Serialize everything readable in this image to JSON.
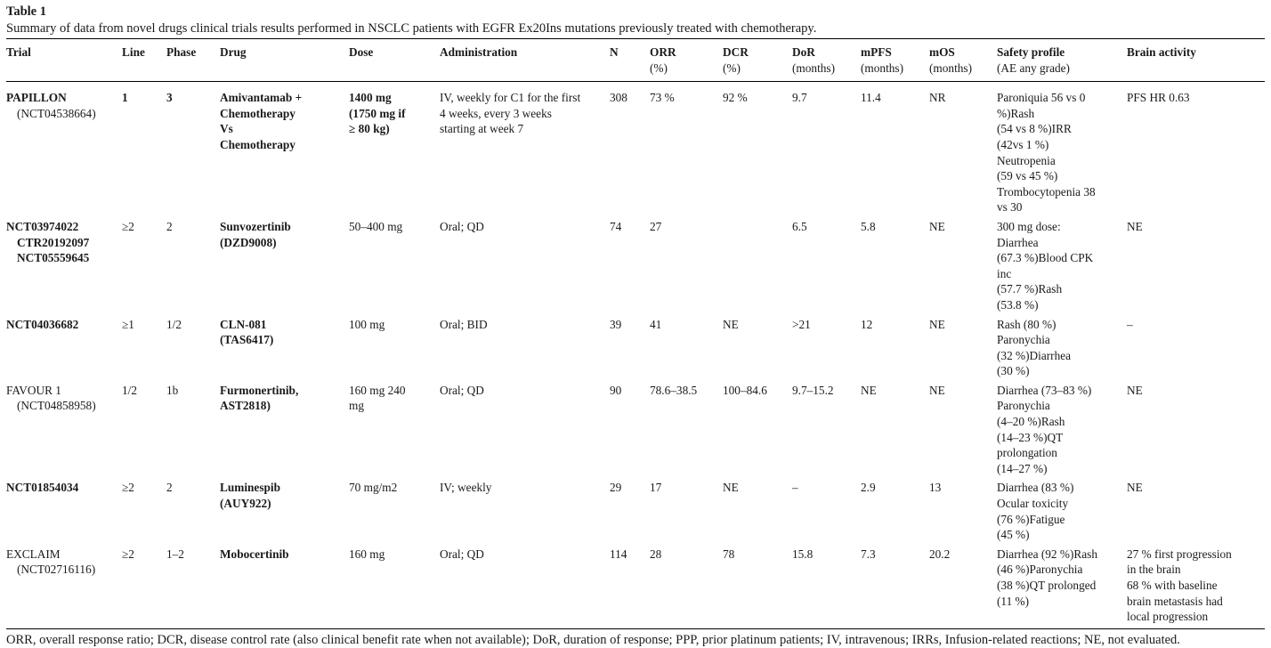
{
  "table": {
    "label": "Table 1",
    "caption": "Summary of data from novel drugs clinical trials results performed in NSCLC patients with EGFR Ex20Ins mutations previously treated with chemotherapy.",
    "headers": [
      {
        "main": "Trial",
        "unit": ""
      },
      {
        "main": "Line",
        "unit": ""
      },
      {
        "main": "Phase",
        "unit": ""
      },
      {
        "main": "Drug",
        "unit": ""
      },
      {
        "main": "Dose",
        "unit": ""
      },
      {
        "main": "Administration",
        "unit": ""
      },
      {
        "main": "N",
        "unit": ""
      },
      {
        "main": "ORR",
        "unit": "(%)"
      },
      {
        "main": "DCR",
        "unit": "(%)"
      },
      {
        "main": "DoR",
        "unit": "(months)"
      },
      {
        "main": "mPFS",
        "unit": "(months)"
      },
      {
        "main": "mOS",
        "unit": "(months)"
      },
      {
        "main": "Safety profile",
        "unit": "(AE any grade)"
      },
      {
        "main": "Brain activity",
        "unit": ""
      }
    ],
    "rows": [
      {
        "trial": [
          "PAPILLON",
          "(NCT04538664)"
        ],
        "line": "1",
        "phase": "3",
        "drug": [
          "Amivantamab +",
          "Chemotherapy",
          "Vs",
          "Chemotherapy"
        ],
        "dose": [
          "1400 mg",
          "(1750 mg if",
          "≥ 80 kg)"
        ],
        "administration": [
          "IV, weekly for C1 for the first",
          "4 weeks, every 3 weeks",
          "starting at week 7"
        ],
        "n": "308",
        "orr": "73 %",
        "dcr": "92 %",
        "dor": "9.7",
        "mpfs": "11.4",
        "mos": "NR",
        "safety": [
          "Paroniquia 56 vs 0",
          "%)Rash",
          "(54 vs 8 %)IRR",
          "(42vs 1 %)",
          "Neutropenia",
          "(59 vs 45 %)",
          "Trombocytopenia 38",
          "vs 30"
        ],
        "brain": [
          "PFS HR 0.63"
        ]
      },
      {
        "trial": [
          "NCT03974022",
          "CTR20192097",
          "NCT05559645"
        ],
        "line": "≥2",
        "phase": "2",
        "drug": [
          "Sunvozertinib",
          "(DZD9008)"
        ],
        "dose": [
          "50–400 mg"
        ],
        "administration": [
          "Oral; QD"
        ],
        "n": "74",
        "orr": "27",
        "dcr": "",
        "dor": "6.5",
        "mpfs": "5.8",
        "mos": "NE",
        "safety": [
          "300 mg dose:",
          "Diarrhea",
          "(67.3 %)Blood CPK",
          "inc",
          "(57.7 %)Rash",
          "(53.8 %)"
        ],
        "brain": [
          "NE"
        ]
      },
      {
        "trial": [
          "NCT04036682"
        ],
        "line": "≥1",
        "phase": "1/2",
        "drug": [
          "CLN-081",
          "(TAS6417)"
        ],
        "dose": [
          "100 mg"
        ],
        "administration": [
          "Oral; BID"
        ],
        "n": "39",
        "orr": "41",
        "dcr": "NE",
        "dor": ">21",
        "mpfs": "12",
        "mos": "NE",
        "safety": [
          "Rash (80 %)",
          "Paronychia",
          "(32 %)Diarrhea",
          "(30 %)"
        ],
        "brain": [
          "–"
        ]
      },
      {
        "trial": [
          "FAVOUR 1",
          "(NCT04858958)"
        ],
        "line": "1/2",
        "phase": "1b",
        "drug": [
          "Furmonertinib,",
          "AST2818)"
        ],
        "dose": [
          "160 mg 240",
          "mg"
        ],
        "administration": [
          "Oral; QD"
        ],
        "n": "90",
        "orr": "78.6–38.5",
        "dcr": "100–84.6",
        "dor": "9.7–15.2",
        "mpfs": "NE",
        "mos": "NE",
        "safety": [
          "Diarrhea (73–83 %)",
          "Paronychia",
          "(4–20 %)Rash",
          "(14–23 %)QT",
          "prolongation",
          "(14–27 %)"
        ],
        "brain": [
          "NE"
        ]
      },
      {
        "trial": [
          "NCT01854034"
        ],
        "line": "≥2",
        "phase": "2",
        "drug": [
          "Luminespib",
          "(AUY922)"
        ],
        "dose": [
          "70 mg/m2"
        ],
        "administration": [
          "IV; weekly"
        ],
        "n": "29",
        "orr": "17",
        "dcr": "NE",
        "dor": "–",
        "mpfs": "2.9",
        "mos": "13",
        "safety": [
          "Diarrhea (83 %)",
          "Ocular toxicity",
          "(76 %)Fatigue",
          "(45 %)"
        ],
        "brain": [
          "NE"
        ]
      },
      {
        "trial": [
          "EXCLAIM",
          "(NCT02716116)"
        ],
        "line": "≥2",
        "phase": "1–2",
        "drug": [
          "Mobocertinib"
        ],
        "dose": [
          "160 mg"
        ],
        "administration": [
          "Oral; QD"
        ],
        "n": "114",
        "orr": "28",
        "dcr": "78",
        "dor": "15.8",
        "mpfs": "7.3",
        "mos": "20.2",
        "safety": [
          "Diarrhea (92 %)Rash",
          "(46 %)Paronychia",
          "(38 %)QT prolonged",
          "(11 %)"
        ],
        "brain": [
          "27 % first progression",
          "in the brain",
          "68 % with baseline",
          "brain metastasis had",
          "local progression"
        ]
      }
    ],
    "footnote": "ORR, overall response ratio; DCR, disease control rate (also clinical benefit rate when not available); DoR, duration of response; PPP, prior platinum patients; IV, intravenous; IRRs, Infusion-related reactions; NE, not evaluated."
  }
}
